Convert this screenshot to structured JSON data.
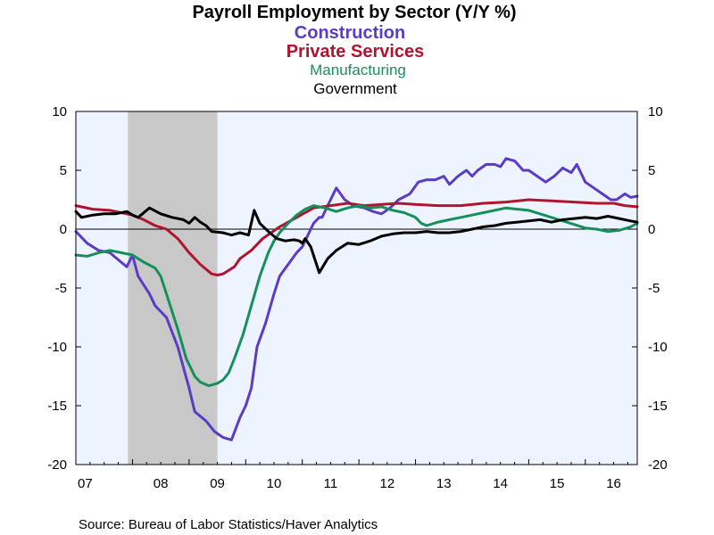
{
  "chart_data": {
    "type": "line",
    "title": "Payroll Employment by Sector (Y/Y %)",
    "source": "Source:  Bureau of Labor Statistics/Haver Analytics",
    "xlabel": "",
    "ylabel": "",
    "ylim": [
      -20,
      10
    ],
    "yticks": [
      10,
      5,
      0,
      -5,
      -10,
      -15,
      -20
    ],
    "ytick_labels": [
      "10",
      "5",
      "0",
      "-5",
      "-10",
      "-15",
      "-20"
    ],
    "xlim": [
      2007.0,
      2016.917
    ],
    "xtick_labels": [
      "07",
      "08",
      "09",
      "10",
      "11",
      "12",
      "13",
      "14",
      "15",
      "16"
    ],
    "xtick_years": [
      2007,
      2008,
      2009,
      2010,
      2011,
      2012,
      2013,
      2014,
      2015,
      2016
    ],
    "recession": [
      2007.92,
      2009.5
    ],
    "grid": false,
    "background": "#eef4ff",
    "recession_color": "#c8c8c8",
    "legend_position": "top (stacked under title)",
    "series": [
      {
        "name": "Construction",
        "color": "#5b3cc4",
        "x": [
          2007.0,
          2007.2,
          2007.4,
          2007.6,
          2007.8,
          2007.9,
          2008.0,
          2008.1,
          2008.3,
          2008.4,
          2008.6,
          2008.8,
          2009.0,
          2009.1,
          2009.3,
          2009.45,
          2009.6,
          2009.75,
          2009.9,
          2010.0,
          2010.1,
          2010.2,
          2010.35,
          2010.5,
          2010.6,
          2010.75,
          2010.9,
          2011.0,
          2011.1,
          2011.2,
          2011.3,
          2011.35,
          2011.45,
          2011.6,
          2011.75,
          2011.9,
          2012.1,
          2012.25,
          2012.4,
          2012.55,
          2012.7,
          2012.9,
          2013.05,
          2013.2,
          2013.35,
          2013.5,
          2013.6,
          2013.75,
          2013.9,
          2014.0,
          2014.1,
          2014.25,
          2014.4,
          2014.5,
          2014.6,
          2014.75,
          2014.9,
          2015.0,
          2015.15,
          2015.3,
          2015.45,
          2015.6,
          2015.75,
          2015.85,
          2016.0,
          2016.15,
          2016.3,
          2016.45,
          2016.55,
          2016.7,
          2016.8,
          2016.917
        ],
        "values": [
          -0.2,
          -1.2,
          -1.8,
          -2.0,
          -2.8,
          -3.2,
          -2.2,
          -4.0,
          -5.5,
          -6.5,
          -7.5,
          -10.0,
          -13.5,
          -15.5,
          -16.3,
          -17.2,
          -17.7,
          -17.9,
          -16.0,
          -15.0,
          -13.5,
          -10.0,
          -8.0,
          -5.5,
          -4.0,
          -3.0,
          -2.0,
          -1.5,
          -0.5,
          0.5,
          1.0,
          1.0,
          2.0,
          3.5,
          2.5,
          2.0,
          1.8,
          1.5,
          1.3,
          1.8,
          2.5,
          3.0,
          4.0,
          4.2,
          4.2,
          4.5,
          3.8,
          4.5,
          5.0,
          4.5,
          5.0,
          5.5,
          5.5,
          5.3,
          6.0,
          5.8,
          5.0,
          5.0,
          4.5,
          4.0,
          4.5,
          5.2,
          4.8,
          5.5,
          4.0,
          3.5,
          3.0,
          2.5,
          2.5,
          3.0,
          2.7,
          2.8
        ]
      },
      {
        "name": "Private Services",
        "color": "#b0142e",
        "x": [
          2007.0,
          2007.3,
          2007.6,
          2007.8,
          2008.0,
          2008.2,
          2008.4,
          2008.6,
          2008.8,
          2009.0,
          2009.2,
          2009.4,
          2009.5,
          2009.6,
          2009.8,
          2009.9,
          2010.1,
          2010.3,
          2010.6,
          2010.9,
          2011.2,
          2011.5,
          2011.8,
          2012.1,
          2012.4,
          2012.7,
          2013.0,
          2013.4,
          2013.8,
          2014.2,
          2014.6,
          2015.0,
          2015.4,
          2015.8,
          2016.2,
          2016.5,
          2016.7,
          2016.917
        ],
        "values": [
          2.0,
          1.7,
          1.6,
          1.4,
          1.2,
          0.8,
          0.3,
          0.0,
          -0.8,
          -2.0,
          -3.0,
          -3.8,
          -3.9,
          -3.8,
          -3.2,
          -2.5,
          -1.8,
          -0.8,
          0.2,
          1.0,
          1.8,
          2.0,
          2.2,
          2.0,
          2.1,
          2.2,
          2.1,
          2.0,
          2.0,
          2.2,
          2.3,
          2.5,
          2.4,
          2.3,
          2.2,
          2.2,
          2.0,
          1.9
        ]
      },
      {
        "name": "Manufacturing",
        "color": "#14915a",
        "x": [
          2007.0,
          2007.2,
          2007.4,
          2007.6,
          2007.8,
          2008.0,
          2008.2,
          2008.4,
          2008.5,
          2008.6,
          2008.8,
          2008.95,
          2009.1,
          2009.2,
          2009.35,
          2009.5,
          2009.6,
          2009.7,
          2009.8,
          2009.95,
          2010.1,
          2010.25,
          2010.4,
          2010.5,
          2010.6,
          2010.75,
          2010.9,
          2011.05,
          2011.2,
          2011.4,
          2011.6,
          2011.8,
          2012.0,
          2012.2,
          2012.4,
          2012.6,
          2012.8,
          2013.0,
          2013.1,
          2013.2,
          2013.4,
          2013.6,
          2013.8,
          2014.0,
          2014.2,
          2014.4,
          2014.6,
          2014.8,
          2015.0,
          2015.2,
          2015.4,
          2015.6,
          2015.8,
          2016.0,
          2016.2,
          2016.4,
          2016.6,
          2016.8,
          2016.917
        ],
        "values": [
          -2.2,
          -2.3,
          -2.0,
          -1.8,
          -2.0,
          -2.2,
          -2.8,
          -3.3,
          -4.0,
          -5.5,
          -8.5,
          -11.0,
          -12.5,
          -13.0,
          -13.3,
          -13.1,
          -12.8,
          -12.2,
          -11.0,
          -9.0,
          -6.5,
          -4.0,
          -2.0,
          -1.0,
          -0.3,
          0.5,
          1.2,
          1.7,
          2.0,
          1.8,
          1.5,
          1.8,
          2.0,
          1.8,
          1.9,
          1.6,
          1.4,
          1.0,
          0.5,
          0.3,
          0.6,
          0.8,
          1.0,
          1.2,
          1.4,
          1.6,
          1.8,
          1.7,
          1.6,
          1.3,
          1.0,
          0.7,
          0.4,
          0.1,
          0.0,
          -0.2,
          -0.1,
          0.2,
          0.5
        ]
      },
      {
        "name": "Government",
        "color": "#000000",
        "x": [
          2007.0,
          2007.1,
          2007.3,
          2007.5,
          2007.7,
          2007.9,
          2008.0,
          2008.1,
          2008.3,
          2008.5,
          2008.7,
          2008.9,
          2009.0,
          2009.1,
          2009.2,
          2009.3,
          2009.4,
          2009.6,
          2009.75,
          2009.9,
          2010.05,
          2010.15,
          2010.25,
          2010.4,
          2010.55,
          2010.7,
          2010.85,
          2010.95,
          2011.0,
          2011.05,
          2011.15,
          2011.3,
          2011.45,
          2011.6,
          2011.8,
          2012.0,
          2012.2,
          2012.4,
          2012.6,
          2012.8,
          2013.0,
          2013.2,
          2013.4,
          2013.6,
          2013.8,
          2014.0,
          2014.2,
          2014.4,
          2014.6,
          2014.8,
          2015.0,
          2015.2,
          2015.4,
          2015.6,
          2015.8,
          2016.0,
          2016.2,
          2016.4,
          2016.6,
          2016.8,
          2016.917
        ],
        "values": [
          1.5,
          1.0,
          1.2,
          1.3,
          1.3,
          1.5,
          1.2,
          1.0,
          1.8,
          1.3,
          1.0,
          0.8,
          0.5,
          1.0,
          0.6,
          0.3,
          -0.2,
          -0.3,
          -0.5,
          -0.3,
          -0.5,
          1.6,
          0.5,
          -0.2,
          -0.8,
          -1.0,
          -0.9,
          -1.0,
          -1.2,
          -0.8,
          -1.5,
          -3.7,
          -2.5,
          -1.8,
          -1.2,
          -1.3,
          -1.0,
          -0.6,
          -0.4,
          -0.3,
          -0.3,
          -0.2,
          -0.3,
          -0.3,
          -0.2,
          0.0,
          0.2,
          0.3,
          0.5,
          0.6,
          0.7,
          0.8,
          0.6,
          0.8,
          0.9,
          1.0,
          0.9,
          1.1,
          0.9,
          0.7,
          0.6
        ]
      }
    ]
  }
}
